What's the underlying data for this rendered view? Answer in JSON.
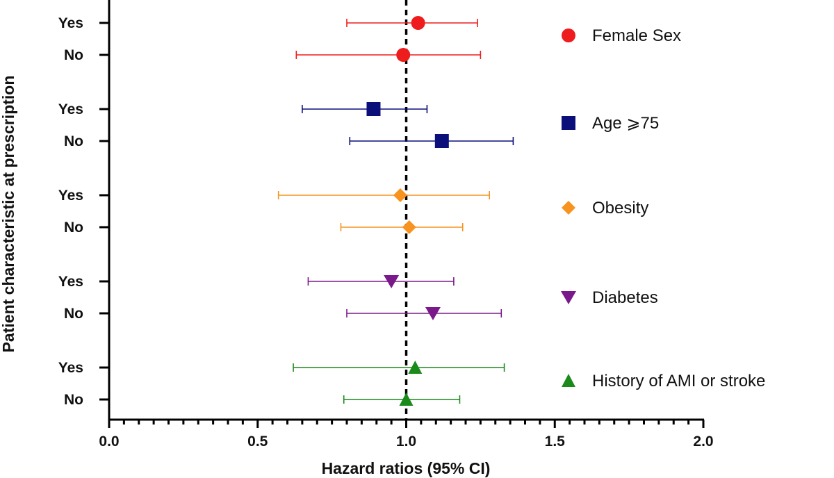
{
  "chart_data": {
    "type": "forest",
    "xlabel": "Hazard ratios (95% CI)",
    "ylabel": "Patient characteristic at prescription",
    "xlim": [
      0.0,
      2.0
    ],
    "xticks": [
      "0.0",
      "0.5",
      "1.0",
      "1.5",
      "2.0"
    ],
    "reference_line": 1.0,
    "groups": [
      {
        "name": "Female Sex",
        "color": "#ee1c1c",
        "marker": "circle",
        "rows": [
          {
            "label": "Yes",
            "hr": 1.04,
            "lo": 0.8,
            "hi": 1.24
          },
          {
            "label": "No",
            "hr": 0.99,
            "lo": 0.63,
            "hi": 1.25
          }
        ]
      },
      {
        "name": "Age ⩾75",
        "color": "#0a0f7a",
        "marker": "square",
        "rows": [
          {
            "label": "Yes",
            "hr": 0.89,
            "lo": 0.65,
            "hi": 1.07
          },
          {
            "label": "No",
            "hr": 1.12,
            "lo": 0.81,
            "hi": 1.36
          }
        ]
      },
      {
        "name": "Obesity",
        "color": "#f7931e",
        "marker": "diamond",
        "rows": [
          {
            "label": "Yes",
            "hr": 0.98,
            "lo": 0.57,
            "hi": 1.28
          },
          {
            "label": "No",
            "hr": 1.01,
            "lo": 0.78,
            "hi": 1.19
          }
        ]
      },
      {
        "name": "Diabetes",
        "color": "#7a1a8a",
        "marker": "triangle-down",
        "rows": [
          {
            "label": "Yes",
            "hr": 0.95,
            "lo": 0.67,
            "hi": 1.16
          },
          {
            "label": "No",
            "hr": 1.09,
            "lo": 0.8,
            "hi": 1.32
          }
        ]
      },
      {
        "name": "History of AMI or stroke",
        "color": "#1a8a1a",
        "marker": "triangle-up",
        "rows": [
          {
            "label": "Yes",
            "hr": 1.03,
            "lo": 0.62,
            "hi": 1.33
          },
          {
            "label": "No",
            "hr": 1.0,
            "lo": 0.79,
            "hi": 1.18
          }
        ]
      }
    ]
  }
}
